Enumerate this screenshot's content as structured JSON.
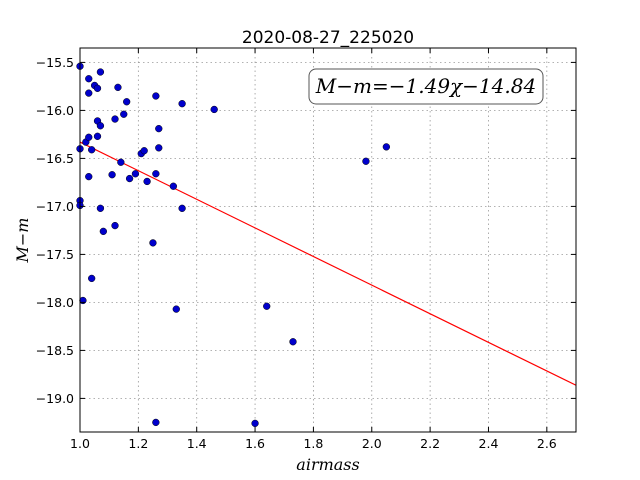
{
  "chart_data": {
    "type": "scatter",
    "title": "2020-08-27_225020",
    "xlabel": "airmass",
    "ylabel": "M−m",
    "xlim": [
      1.0,
      2.7
    ],
    "ylim": [
      -19.35,
      -15.35
    ],
    "y_inverted": true,
    "x_ticks": [
      1.0,
      1.2,
      1.4,
      1.6,
      1.8,
      2.0,
      2.2,
      2.4,
      2.6
    ],
    "x_tick_labels": [
      "1.0",
      "1.2",
      "1.4",
      "1.6",
      "1.8",
      "2.0",
      "2.2",
      "2.4",
      "2.6"
    ],
    "y_ticks": [
      -15.5,
      -16.0,
      -16.5,
      -17.0,
      -17.5,
      -18.0,
      -18.5,
      -19.0
    ],
    "y_tick_labels": [
      "−15.5",
      "−16.0",
      "−16.5",
      "−17.0",
      "−17.5",
      "−18.0",
      "−18.5",
      "−19.0"
    ],
    "grid": true,
    "annotation": "M−m=−1.49χ−14.84",
    "series": [
      {
        "marker_color": "#0000cc",
        "points": [
          [
            1.0,
            -15.54
          ],
          [
            1.03,
            -15.67
          ],
          [
            1.03,
            -15.82
          ],
          [
            1.05,
            -15.74
          ],
          [
            1.06,
            -15.77
          ],
          [
            1.07,
            -15.6
          ],
          [
            1.13,
            -15.76
          ],
          [
            1.16,
            -15.91
          ],
          [
            1.26,
            -15.85
          ],
          [
            1.35,
            -15.93
          ],
          [
            1.46,
            -15.99
          ],
          [
            1.06,
            -16.11
          ],
          [
            1.07,
            -16.16
          ],
          [
            1.12,
            -16.09
          ],
          [
            1.15,
            -16.04
          ],
          [
            1.27,
            -16.19
          ],
          [
            1.02,
            -16.33
          ],
          [
            1.03,
            -16.28
          ],
          [
            1.06,
            -16.27
          ],
          [
            1.0,
            -16.4
          ],
          [
            1.04,
            -16.41
          ],
          [
            1.21,
            -16.45
          ],
          [
            1.22,
            -16.42
          ],
          [
            1.27,
            -16.39
          ],
          [
            1.14,
            -16.54
          ],
          [
            1.03,
            -16.69
          ],
          [
            1.11,
            -16.67
          ],
          [
            1.17,
            -16.71
          ],
          [
            1.19,
            -16.66
          ],
          [
            1.23,
            -16.74
          ],
          [
            1.26,
            -16.66
          ],
          [
            1.32,
            -16.79
          ],
          [
            1.0,
            -16.94
          ],
          [
            1.0,
            -16.99
          ],
          [
            1.07,
            -17.02
          ],
          [
            1.35,
            -17.02
          ],
          [
            1.08,
            -17.26
          ],
          [
            1.12,
            -17.2
          ],
          [
            1.25,
            -17.38
          ],
          [
            1.04,
            -17.75
          ],
          [
            1.01,
            -17.98
          ],
          [
            1.33,
            -18.07
          ],
          [
            1.64,
            -18.04
          ],
          [
            1.73,
            -18.41
          ],
          [
            1.26,
            -19.25
          ],
          [
            1.6,
            -19.26
          ],
          [
            1.98,
            -16.53
          ],
          [
            2.05,
            -16.38
          ]
        ]
      }
    ],
    "fit_line": {
      "slope": -1.49,
      "intercept": -14.84,
      "x_range": [
        1.0,
        2.7
      ],
      "color": "#ff0000"
    }
  }
}
